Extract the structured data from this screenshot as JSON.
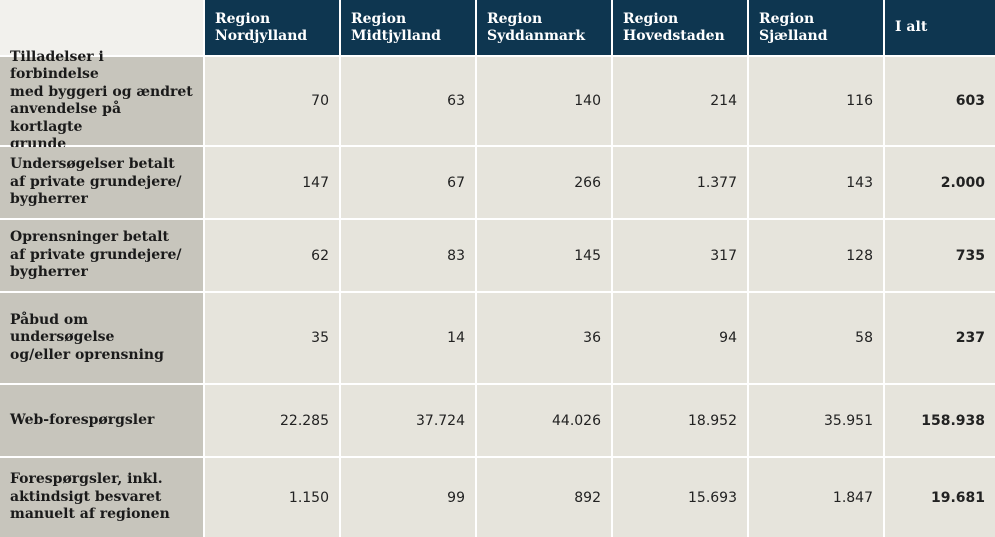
{
  "header": {
    "columns": [
      "Region\nNordjylland",
      "Region\nMidtjylland",
      "Region\nSyddanmark",
      "Region\nHovedstaden",
      "Region\nSjælland",
      "I alt"
    ]
  },
  "rows": [
    {
      "label": "Tilladelser i forbindelse\nmed byggeri og ændret\nanvendelse på kortlagte\ngrunde",
      "values": [
        "70",
        "63",
        "140",
        "214",
        "116",
        "603"
      ]
    },
    {
      "label": "Undersøgelser betalt\naf private grundejere/\nbygherrer",
      "values": [
        "147",
        "67",
        "266",
        "1.377",
        "143",
        "2.000"
      ]
    },
    {
      "label": "Oprensninger betalt\naf private grundejere/\nbygherrer",
      "values": [
        "62",
        "83",
        "145",
        "317",
        "128",
        "735"
      ]
    },
    {
      "label": "Påbud om undersøgelse\nog/eller oprensning",
      "values": [
        "35",
        "14",
        "36",
        "94",
        "58",
        "237"
      ]
    },
    {
      "label": "Web-forespørgsler",
      "values": [
        "22.285",
        "37.724",
        "44.026",
        "18.952",
        "35.951",
        "158.938"
      ]
    },
    {
      "label": "Forespørgsler,  inkl.\naktindsigt besvaret\nmanuelt af regionen",
      "values": [
        "1.150",
        "99",
        "892",
        "15.693",
        "1.847",
        "19.681"
      ]
    }
  ]
}
